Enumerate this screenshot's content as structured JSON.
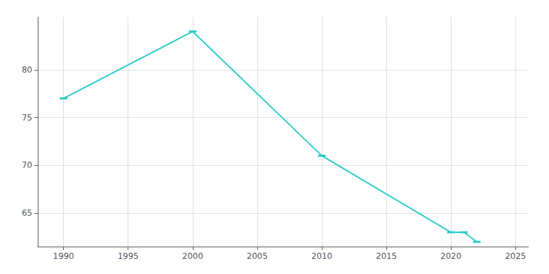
{
  "chart_data": {
    "type": "line",
    "x": [
      1990,
      2000,
      2010,
      2020,
      2021,
      2022
    ],
    "values": [
      77,
      84,
      71,
      63,
      63,
      62
    ],
    "color": "#29cbc9",
    "marker": "dash",
    "xlim": [
      1988,
      2026
    ],
    "xticks": [
      1990,
      1995,
      2000,
      2005,
      2010,
      2015,
      2020,
      2025
    ],
    "ylim": [
      61.5,
      85.5
    ],
    "yticks": [
      65,
      70,
      75,
      80
    ],
    "grid": true
  }
}
